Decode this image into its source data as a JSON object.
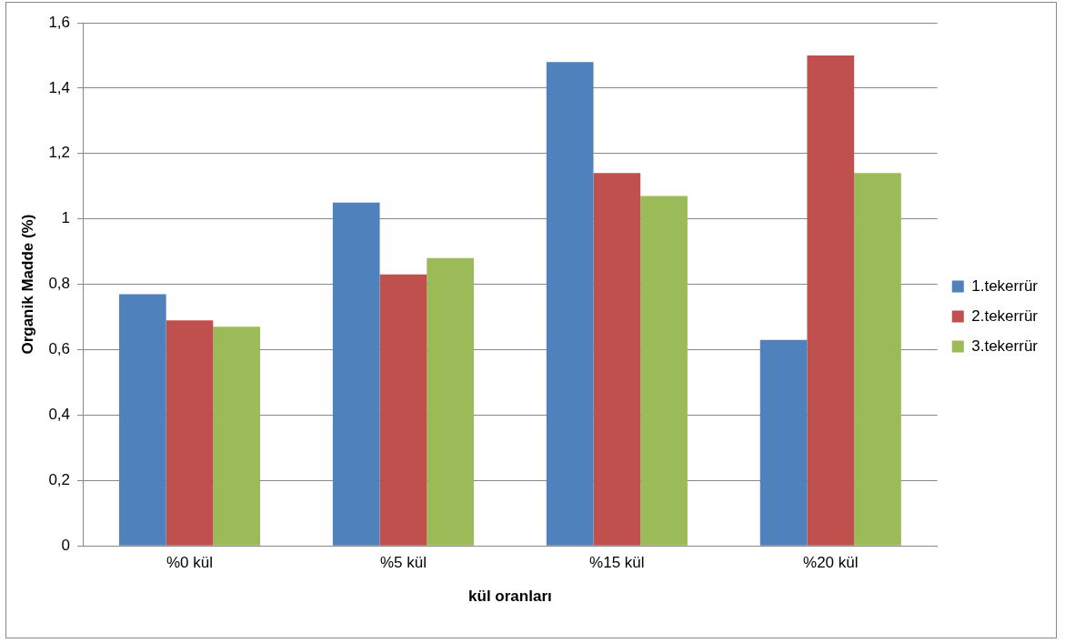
{
  "chart_data": {
    "type": "bar",
    "xlabel": "kül oranları",
    "ylabel": "Organik Madde (%)",
    "categories": [
      "%0 kül",
      "%5 kül",
      "%15 kül",
      "%20 kül"
    ],
    "series": [
      {
        "name": "1.tekerrür",
        "color": "#4f81bd",
        "values": [
          0.77,
          1.05,
          1.48,
          0.63
        ]
      },
      {
        "name": "2.tekerrür",
        "color": "#c0504d",
        "values": [
          0.69,
          0.83,
          1.14,
          1.5
        ]
      },
      {
        "name": "3.tekerrür",
        "color": "#9bbb59",
        "values": [
          0.67,
          0.88,
          1.07,
          1.14
        ]
      }
    ],
    "ylim": [
      0,
      1.6
    ],
    "yticks": [
      0,
      {
        "value": 0.2,
        "label": "0,2"
      },
      {
        "value": 0.4,
        "label": "0,4"
      },
      {
        "value": 0.6,
        "label": "0,6"
      },
      {
        "value": 0.8,
        "label": "0,8"
      },
      1,
      {
        "value": 1.2,
        "label": "1,2"
      },
      {
        "value": 1.4,
        "label": "1,4"
      },
      {
        "value": 1.6,
        "label": "1,6"
      }
    ],
    "grid": "y",
    "legend": "right"
  }
}
